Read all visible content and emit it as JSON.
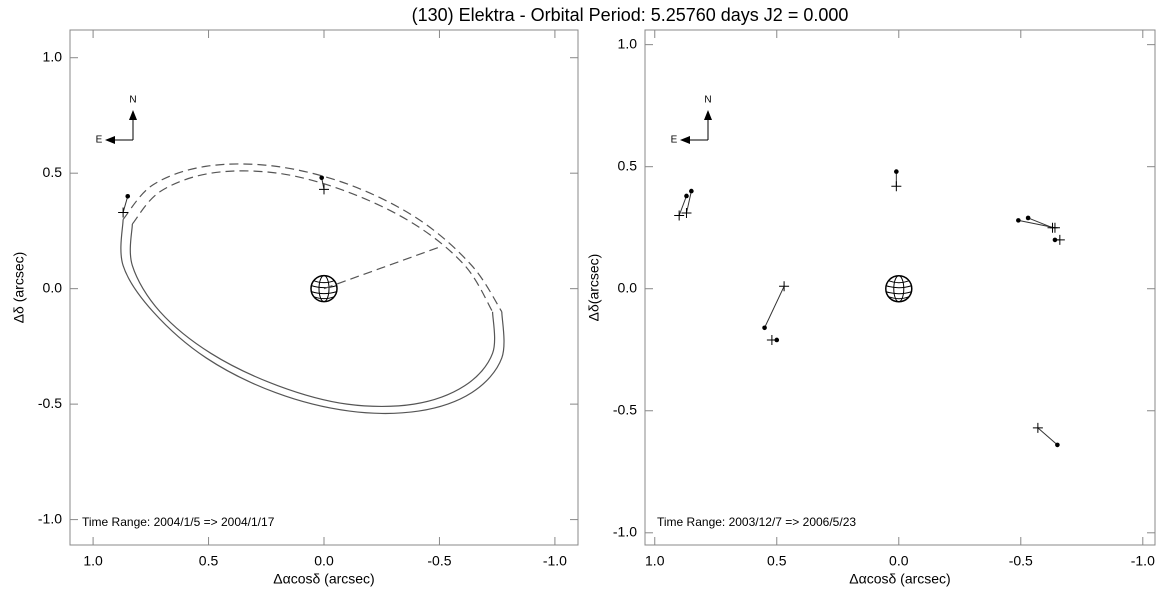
{
  "title": "(130) Elektra - Orbital Period: 5.25760 days   J2 = 0.000",
  "chart_data": [
    {
      "type": "line",
      "xlabel": "Δαcosδ (arcsec)",
      "ylabel": "Δδ (arcsec)",
      "xlim": [
        1.1,
        -1.1
      ],
      "ylim": [
        -1.11,
        1.12
      ],
      "xticks": [
        {
          "value": 1,
          "label": "1.0"
        },
        {
          "value": 0.5,
          "label": "0.5"
        },
        {
          "value": 0,
          "label": "0.0"
        },
        {
          "value": -0.5,
          "label": "-0.5"
        },
        {
          "value": -1,
          "label": "-1.0"
        }
      ],
      "yticks": [
        {
          "value": 1,
          "label": "1.0"
        },
        {
          "value": 0.5,
          "label": "0.5"
        },
        {
          "value": 0,
          "label": "0.0"
        },
        {
          "value": -0.5,
          "label": "-0.5"
        },
        {
          "value": -1,
          "label": "-1.0"
        }
      ],
      "annotation": "Time Range: 2004/1/5 => 2004/1/17",
      "compass": {
        "north": "N",
        "east": "E"
      },
      "primary": {
        "x": 0,
        "y": 0
      },
      "series": [
        {
          "style": "dashed",
          "color": "#555555",
          "x": [
            0.87,
            0.74,
            0.51,
            0.21,
            -0.11,
            -0.41,
            -0.64,
            -0.77
          ],
          "y": [
            0.3,
            0.45,
            0.53,
            0.53,
            0.45,
            0.3,
            0.1,
            -0.1
          ]
        },
        {
          "style": "solid",
          "color": "#555555",
          "x": [
            -0.77,
            -0.77,
            -0.64,
            -0.41,
            -0.11,
            0.21,
            0.51,
            0.74,
            0.87,
            0.87
          ],
          "y": [
            -0.1,
            -0.3,
            -0.45,
            -0.53,
            -0.53,
            -0.45,
            -0.3,
            -0.1,
            0.1,
            0.3
          ]
        },
        {
          "style": "dashed",
          "color": "#555555",
          "x": [
            0.83,
            0.71,
            0.49,
            0.2,
            -0.1,
            -0.39,
            -0.61,
            -0.73
          ],
          "y": [
            0.28,
            0.42,
            0.5,
            0.5,
            0.42,
            0.28,
            0.1,
            -0.1
          ]
        },
        {
          "style": "solid",
          "color": "#555555",
          "x": [
            -0.73,
            -0.73,
            -0.61,
            -0.39,
            -0.1,
            0.2,
            0.49,
            0.71,
            0.83,
            0.83
          ],
          "y": [
            -0.1,
            -0.28,
            -0.42,
            -0.5,
            -0.5,
            -0.42,
            -0.28,
            -0.1,
            0.1,
            0.28
          ]
        },
        {
          "style": "dashed",
          "color": "#555555",
          "x": [
            0,
            -0.5
          ],
          "y": [
            0,
            0.18
          ]
        }
      ],
      "observed": {
        "x": [
          0.85,
          0.01
        ],
        "y": [
          0.4,
          0.48
        ]
      },
      "predicted": {
        "x": [
          0.87,
          0.0
        ],
        "y": [
          0.33,
          0.43
        ]
      }
    },
    {
      "type": "scatter",
      "xlabel": "Δαcosδ (arcsec)",
      "ylabel": "Δδ(arcsec)",
      "xlim": [
        1.04,
        -1.05
      ],
      "ylim": [
        -1.05,
        1.06
      ],
      "xticks": [
        {
          "value": 1,
          "label": "1.0"
        },
        {
          "value": 0.5,
          "label": "0.5"
        },
        {
          "value": 0,
          "label": "0.0"
        },
        {
          "value": -0.5,
          "label": "-0.5"
        },
        {
          "value": -1,
          "label": "-1.0"
        }
      ],
      "yticks": [
        {
          "value": 1,
          "label": "1.0"
        },
        {
          "value": 0.5,
          "label": "0.5"
        },
        {
          "value": 0,
          "label": "0.0"
        },
        {
          "value": -0.5,
          "label": "-0.5"
        },
        {
          "value": -1,
          "label": "-1.0"
        }
      ],
      "annotation": "Time Range: 2003/12/7 => 2006/5/23",
      "compass": {
        "north": "N",
        "east": "E"
      },
      "primary": {
        "x": 0,
        "y": 0
      },
      "observed": {
        "x": [
          0.87,
          0.85,
          0.01,
          -0.49,
          -0.53,
          -0.64,
          0.55,
          0.5,
          -0.65
        ],
        "y": [
          0.38,
          0.4,
          0.48,
          0.28,
          0.29,
          0.2,
          -0.16,
          -0.21,
          -0.64
        ]
      },
      "predicted": {
        "x": [
          0.9,
          0.87,
          0.01,
          -0.64,
          -0.63,
          -0.66,
          0.47,
          0.52,
          -0.57
        ],
        "y": [
          0.3,
          0.31,
          0.42,
          0.25,
          0.25,
          0.2,
          0.01,
          -0.21,
          -0.57
        ]
      }
    }
  ]
}
